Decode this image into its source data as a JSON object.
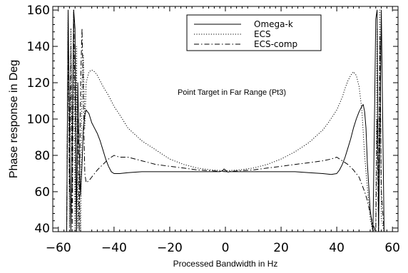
{
  "chart_data": {
    "type": "line",
    "title": "",
    "annotation": "Point Target in Far Range (Pt3)",
    "xlabel": "Processed Bandwidth in Hz",
    "ylabel": "Phase response in Deg",
    "xlim": [
      -62,
      62
    ],
    "ylim": [
      38,
      162
    ],
    "xticks": [
      -60,
      -40,
      -20,
      0,
      20,
      40,
      60
    ],
    "yticks": [
      40,
      60,
      80,
      100,
      120,
      140,
      160
    ],
    "xtick_labels": [
      "−60",
      "−40",
      "−20",
      "0",
      "20",
      "40",
      "60"
    ],
    "ytick_labels": [
      "40",
      "60",
      "80",
      "100",
      "120",
      "140",
      "160"
    ],
    "grid": false,
    "legend": "top-center",
    "series": [
      {
        "name": "Omega-k",
        "style": "solid",
        "x": [
          -57,
          -56.5,
          -56,
          -55.5,
          -55,
          -54.5,
          -54,
          -53.5,
          -53,
          -52.5,
          -52,
          -51.5,
          -51,
          -50.5,
          -50,
          -49,
          -48,
          -47,
          -46,
          -45,
          -44,
          -43,
          -42,
          -41,
          -40,
          -38,
          -35,
          -30,
          -25,
          -20,
          -15,
          -10,
          -5,
          -2,
          -1,
          -0.5,
          0,
          0.5,
          1,
          1.5,
          2,
          5,
          10,
          15,
          20,
          25,
          30,
          35,
          38,
          40,
          41,
          42,
          43,
          44,
          45,
          46,
          47,
          48,
          49,
          49.5,
          50,
          50.5,
          51,
          52,
          53,
          54,
          54.5,
          55,
          55.5,
          56,
          57
        ],
        "y": [
          38,
          160,
          100,
          38,
          90,
          160,
          150,
          38,
          120,
          80,
          58,
          75,
          95,
          102,
          105,
          103,
          98,
          95,
          92,
          88,
          83,
          78,
          74,
          71,
          70,
          70,
          70.5,
          71,
          71,
          71,
          71,
          71,
          71,
          71,
          71.5,
          72.5,
          72,
          71,
          70.8,
          71,
          71,
          71,
          71,
          71,
          71,
          71,
          70.5,
          70,
          69.5,
          70,
          72,
          75,
          79,
          84,
          89,
          95,
          100,
          104,
          107,
          108,
          104,
          95,
          75,
          50,
          38,
          155,
          160,
          38,
          90,
          160,
          38
        ]
      },
      {
        "name": "ECS",
        "style": "dotted",
        "x": [
          -57,
          -56.5,
          -56,
          -55.5,
          -55,
          -54.5,
          -54,
          -53.5,
          -53,
          -52.5,
          -52,
          -51.5,
          -51,
          -50.5,
          -50,
          -49,
          -48,
          -47,
          -46,
          -45,
          -44,
          -42,
          -40,
          -37,
          -35,
          -30,
          -25,
          -20,
          -15,
          -10,
          -5,
          0,
          5,
          10,
          15,
          20,
          25,
          30,
          35,
          37,
          40,
          42,
          43,
          44,
          45,
          46,
          47,
          48,
          49,
          50,
          51,
          52,
          53,
          54,
          54.5,
          55,
          55.5,
          56,
          57
        ],
        "y": [
          38,
          160,
          40,
          150,
          60,
          160,
          38,
          140,
          40,
          70,
          38,
          120,
          135,
          95,
          120,
          126,
          127,
          126,
          124,
          121,
          118,
          113,
          107,
          100,
          95,
          88,
          83,
          78,
          75,
          73,
          72,
          71.5,
          72,
          73,
          75,
          78,
          82,
          87,
          94,
          98,
          105,
          112,
          117,
          121,
          124,
          126,
          124,
          118,
          105,
          80,
          62,
          45,
          38,
          40,
          150,
          38,
          160,
          45,
          38
        ]
      },
      {
        "name": "ECS-comp",
        "style": "dashdot",
        "x": [
          -57,
          -56.5,
          -56,
          -55.5,
          -55,
          -54.5,
          -54,
          -53.5,
          -53,
          -52.5,
          -52,
          -51.5,
          -51,
          -50.5,
          -50,
          -49,
          -48,
          -47,
          -46,
          -44,
          -42,
          -40,
          -38,
          -35,
          -30,
          -25,
          -20,
          -15,
          -10,
          -5,
          0,
          5,
          10,
          15,
          20,
          25,
          30,
          35,
          38,
          40,
          42,
          44,
          46,
          48,
          49,
          50,
          51,
          52,
          53,
          54,
          54.5,
          55,
          55.5,
          56,
          57
        ],
        "y": [
          38,
          155,
          60,
          140,
          38,
          160,
          110,
          38,
          100,
          38,
          120,
          150,
          110,
          70,
          65,
          66,
          68,
          70,
          72,
          75,
          78,
          80,
          79,
          79,
          77,
          75,
          74,
          73,
          72,
          71.5,
          71,
          71.5,
          72,
          73,
          74,
          75,
          76,
          77,
          78,
          79,
          77,
          75,
          72,
          68,
          64,
          60,
          55,
          48,
          42,
          38,
          100,
          38,
          145,
          60,
          38
        ]
      }
    ]
  }
}
